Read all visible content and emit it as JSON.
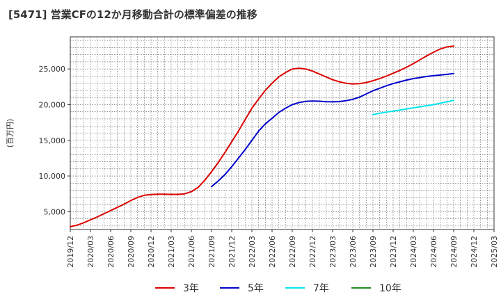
{
  "title": "[5471]  営業CFの12か月移動合計の標準偏差の推移",
  "chart_data": {
    "type": "line",
    "ylabel": "(百万円)",
    "ylim": [
      2500,
      29500
    ],
    "yticks": [
      5000,
      10000,
      15000,
      20000,
      25000
    ],
    "ytick_labels": [
      "5,000",
      "10,000",
      "15,000",
      "20,000",
      "25,000"
    ],
    "xticks": [
      "2019/12",
      "2020/03",
      "2020/06",
      "2020/09",
      "2020/12",
      "2021/03",
      "2021/06",
      "2021/09",
      "2021/12",
      "2022/03",
      "2022/06",
      "2022/09",
      "2022/12",
      "2023/03",
      "2023/06",
      "2023/09",
      "2023/12",
      "2024/03",
      "2024/06",
      "2024/09",
      "2024/12",
      "2025/03"
    ],
    "grid": true,
    "legend_position": "bottom",
    "series": [
      {
        "name": "3年",
        "color": "#dd0000",
        "x": [
          "2019/12",
          "2020/01",
          "2020/02",
          "2020/03",
          "2020/04",
          "2020/05",
          "2020/06",
          "2020/07",
          "2020/08",
          "2020/09",
          "2020/10",
          "2020/11",
          "2020/12",
          "2021/01",
          "2021/02",
          "2021/03",
          "2021/04",
          "2021/05",
          "2021/06",
          "2021/07",
          "2021/08",
          "2021/09",
          "2021/10",
          "2021/11",
          "2021/12",
          "2022/01",
          "2022/02",
          "2022/03",
          "2022/04",
          "2022/05",
          "2022/06",
          "2022/07",
          "2022/08",
          "2022/09",
          "2022/10",
          "2022/11",
          "2022/12",
          "2023/01",
          "2023/02",
          "2023/03",
          "2023/04",
          "2023/05",
          "2023/06",
          "2023/07",
          "2023/08",
          "2023/09",
          "2023/10",
          "2023/11",
          "2023/12",
          "2024/01",
          "2024/02",
          "2024/03",
          "2024/04",
          "2024/05",
          "2024/06",
          "2024/07",
          "2024/08",
          "2024/09"
        ],
        "values": [
          2900,
          3100,
          3450,
          3850,
          4250,
          4700,
          5150,
          5600,
          6050,
          6550,
          7000,
          7300,
          7400,
          7450,
          7450,
          7420,
          7420,
          7500,
          7800,
          8400,
          9400,
          10600,
          11900,
          13300,
          14800,
          16300,
          17900,
          19500,
          20800,
          22000,
          23000,
          23900,
          24500,
          25000,
          25100,
          25000,
          24700,
          24300,
          23900,
          23500,
          23200,
          23000,
          22900,
          22950,
          23100,
          23350,
          23650,
          24000,
          24400,
          24800,
          25250,
          25750,
          26300,
          26850,
          27350,
          27800,
          28100,
          28200
        ]
      },
      {
        "name": "5年",
        "color": "#0000cc",
        "x": [
          "2021/09",
          "2021/10",
          "2021/11",
          "2021/12",
          "2022/01",
          "2022/02",
          "2022/03",
          "2022/04",
          "2022/05",
          "2022/06",
          "2022/07",
          "2022/08",
          "2022/09",
          "2022/10",
          "2022/11",
          "2022/12",
          "2023/01",
          "2023/02",
          "2023/03",
          "2023/04",
          "2023/05",
          "2023/06",
          "2023/07",
          "2023/08",
          "2023/09",
          "2023/10",
          "2023/11",
          "2023/12",
          "2024/01",
          "2024/02",
          "2024/03",
          "2024/04",
          "2024/05",
          "2024/06",
          "2024/07",
          "2024/08",
          "2024/09"
        ],
        "values": [
          8500,
          9300,
          10200,
          11300,
          12500,
          13700,
          15000,
          16300,
          17300,
          18100,
          18900,
          19500,
          20000,
          20300,
          20450,
          20500,
          20480,
          20420,
          20400,
          20430,
          20550,
          20750,
          21050,
          21500,
          21950,
          22300,
          22650,
          22950,
          23200,
          23450,
          23650,
          23800,
          23950,
          24050,
          24150,
          24250,
          24350
        ]
      },
      {
        "name": "7年",
        "color": "#00e5ee",
        "x": [
          "2023/09",
          "2023/10",
          "2023/11",
          "2023/12",
          "2024/01",
          "2024/02",
          "2024/03",
          "2024/04",
          "2024/05",
          "2024/06",
          "2024/07",
          "2024/08",
          "2024/09"
        ],
        "values": [
          18600,
          18800,
          18950,
          19100,
          19250,
          19400,
          19550,
          19700,
          19850,
          20000,
          20200,
          20400,
          20600
        ]
      },
      {
        "name": "10年",
        "color": "#228b22",
        "x": [],
        "values": []
      }
    ]
  }
}
